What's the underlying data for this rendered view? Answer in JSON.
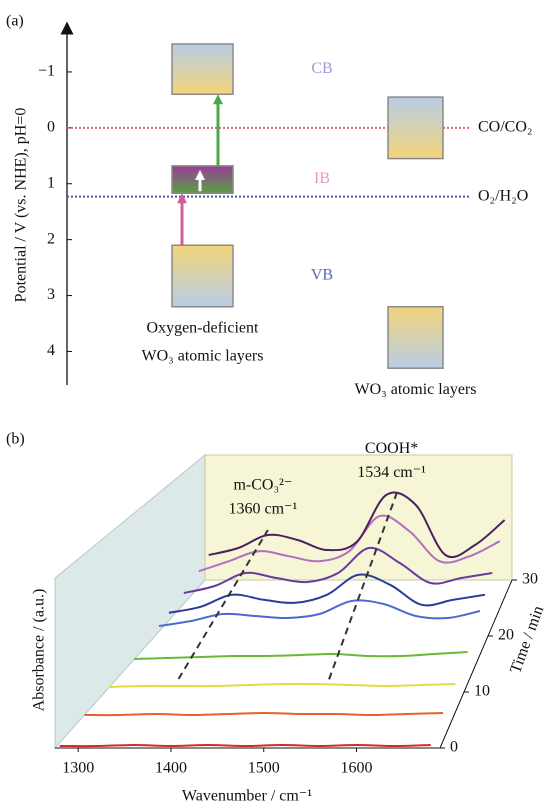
{
  "chart_data": [
    {
      "type": "band",
      "panel_label": "(a)",
      "ylabel": "Potential / V (vs. NHE), pH=0",
      "ylim": [
        4.6,
        -1.75
      ],
      "yticks": [
        {
          "value": -1,
          "label": "−1"
        },
        0,
        1,
        2,
        3,
        4
      ],
      "levels": [
        {
          "name": "CO/CO₂",
          "value": 0,
          "color": "#e8606e"
        },
        {
          "name": "O₂/H₂O",
          "value": 1.23,
          "color": "#4a55b0"
        }
      ],
      "materials": [
        {
          "label": [
            "Oxygen-deficient",
            "WO₃ atomic layers"
          ],
          "bands": [
            {
              "name": "CB",
              "top": -1.5,
              "bottom": -0.6,
              "colors": [
                "#b8cde6",
                "#f2d47a"
              ],
              "label_color": "#9c9ad6"
            },
            {
              "name": "IB",
              "top": 0.68,
              "bottom": 1.17,
              "colors": [
                "#9a3c9a",
                "#5aa040"
              ],
              "label_color": "#e49ac8"
            },
            {
              "name": "VB",
              "top": 2.1,
              "bottom": 3.2,
              "colors": [
                "#f2d47a",
                "#b8cde6"
              ],
              "label_color": "#5b68b0"
            }
          ]
        },
        {
          "label": [
            "WO₃ atomic layers"
          ],
          "bands": [
            {
              "top": -0.55,
              "bottom": 0.55,
              "colors": [
                "#b8cde6",
                "#f2d47a"
              ]
            },
            {
              "top": 3.2,
              "bottom": 4.3,
              "colors": [
                "#f2d47a",
                "#b8cde6"
              ]
            }
          ]
        }
      ]
    },
    {
      "type": "waterfall",
      "panel_label": "(b)",
      "xlabel": "Wavenumber / cm⁻¹",
      "ylabel": "Absorbance / (a.u.)",
      "zlabel": "Time / min",
      "x": [
        1280,
        1320,
        1360,
        1400,
        1440,
        1480,
        1520,
        1560,
        1600,
        1640,
        1680
      ],
      "xlim": [
        1275,
        1690
      ],
      "xticks": [
        1300,
        1400,
        1500,
        1600
      ],
      "zlim": [
        0,
        30
      ],
      "zticks": [
        0,
        10,
        20,
        30
      ],
      "ylim": [
        0,
        1.2
      ],
      "series": [
        {
          "z": 0,
          "color": "#d42a2a",
          "values": [
            0.02,
            0.02,
            0.03,
            0.02,
            0.03,
            0.02,
            0.03,
            0.02,
            0.03,
            0.02,
            0.03
          ]
        },
        {
          "z": 5,
          "color": "#e8622a",
          "values": [
            0.05,
            0.05,
            0.06,
            0.05,
            0.06,
            0.07,
            0.06,
            0.06,
            0.05,
            0.06,
            0.07
          ]
        },
        {
          "z": 10,
          "color": "#dede40",
          "values": [
            0.05,
            0.06,
            0.06,
            0.06,
            0.07,
            0.08,
            0.08,
            0.07,
            0.06,
            0.07,
            0.08
          ]
        },
        {
          "z": 15,
          "color": "#6ab83a",
          "values": [
            0.05,
            0.06,
            0.07,
            0.08,
            0.08,
            0.09,
            0.1,
            0.08,
            0.08,
            0.1,
            0.12
          ]
        },
        {
          "z": 20,
          "color": "#4a6ad0",
          "values": [
            0.1,
            0.15,
            0.22,
            0.2,
            0.18,
            0.22,
            0.35,
            0.32,
            0.2,
            0.18,
            0.25
          ]
        },
        {
          "z": 22,
          "color": "#2c3c9a",
          "values": [
            0.12,
            0.18,
            0.3,
            0.25,
            0.22,
            0.3,
            0.5,
            0.4,
            0.2,
            0.25,
            0.3
          ]
        },
        {
          "z": 25,
          "color": "#6a3aa0",
          "values": [
            0.15,
            0.22,
            0.35,
            0.3,
            0.26,
            0.35,
            0.6,
            0.45,
            0.25,
            0.3,
            0.35
          ]
        },
        {
          "z": 28,
          "color": "#b070c0",
          "values": [
            0.2,
            0.3,
            0.4,
            0.35,
            0.3,
            0.4,
            0.75,
            0.6,
            0.3,
            0.35,
            0.5
          ]
        },
        {
          "z": 30,
          "color": "#4a2060",
          "values": [
            0.25,
            0.32,
            0.45,
            0.4,
            0.3,
            0.38,
            0.85,
            0.75,
            0.25,
            0.35,
            0.6
          ]
        }
      ],
      "annotations": [
        {
          "text": "m-CO₃²⁻",
          "label": "1360 cm⁻¹",
          "x": 1360
        },
        {
          "text": "COOH*",
          "label": "1534 cm⁻¹",
          "x": 1534
        }
      ]
    }
  ]
}
